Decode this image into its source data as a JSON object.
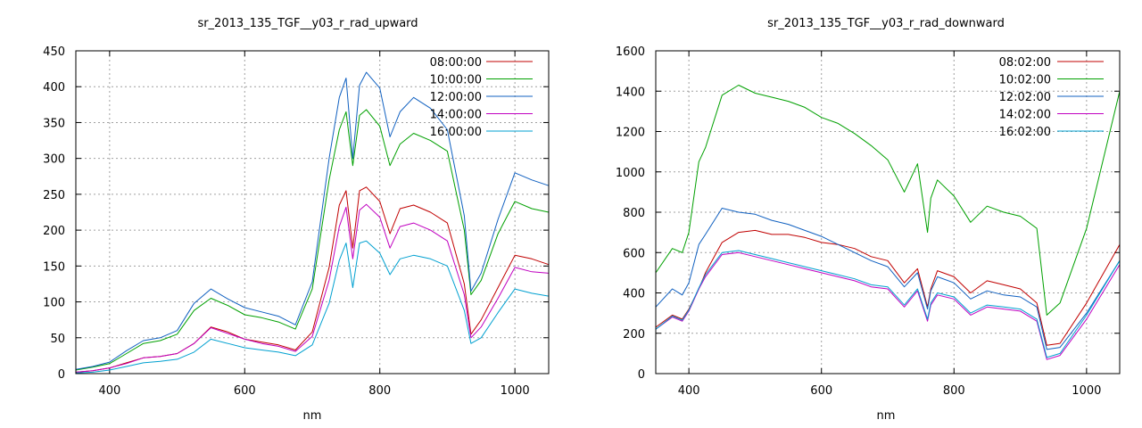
{
  "chart_data": [
    {
      "type": "line",
      "title": "sr_2013_135_TGF__y03_r_rad_upward",
      "xlabel": "nm",
      "ylabel": "",
      "xlim": [
        350,
        1050
      ],
      "ylim": [
        0,
        450
      ],
      "xticks": [
        400,
        600,
        800,
        1000
      ],
      "yticks": [
        0,
        50,
        100,
        150,
        200,
        250,
        300,
        350,
        400,
        450
      ],
      "grid": true,
      "legend_position": "top-right",
      "x": [
        350,
        375,
        400,
        425,
        450,
        475,
        500,
        525,
        550,
        575,
        600,
        625,
        650,
        675,
        700,
        725,
        740,
        750,
        760,
        770,
        780,
        800,
        815,
        830,
        850,
        875,
        900,
        925,
        935,
        950,
        975,
        1000,
        1025,
        1050
      ],
      "series": [
        {
          "name": "08:00:00",
          "color": "#c00000",
          "values": [
            2,
            4,
            8,
            15,
            22,
            24,
            28,
            42,
            65,
            58,
            48,
            44,
            40,
            33,
            58,
            148,
            235,
            255,
            175,
            255,
            260,
            240,
            195,
            230,
            235,
            225,
            210,
            125,
            55,
            75,
            120,
            165,
            160,
            152
          ]
        },
        {
          "name": "10:00:00",
          "color": "#00a000",
          "values": [
            5,
            9,
            14,
            28,
            42,
            46,
            55,
            88,
            105,
            95,
            82,
            78,
            72,
            62,
            118,
            270,
            340,
            365,
            290,
            360,
            368,
            345,
            290,
            320,
            335,
            325,
            310,
            200,
            110,
            130,
            195,
            240,
            230,
            225
          ]
        },
        {
          "name": "12:00:00",
          "color": "#1060c0",
          "values": [
            6,
            10,
            16,
            32,
            46,
            50,
            60,
            98,
            118,
            104,
            92,
            86,
            80,
            68,
            128,
            300,
            385,
            412,
            300,
            402,
            420,
            398,
            330,
            365,
            385,
            370,
            340,
            220,
            115,
            140,
            215,
            280,
            270,
            262
          ]
        },
        {
          "name": "14:00:00",
          "color": "#c000c0",
          "values": [
            2,
            4,
            8,
            14,
            22,
            24,
            28,
            42,
            64,
            56,
            48,
            42,
            38,
            31,
            52,
            130,
            205,
            232,
            160,
            228,
            236,
            218,
            175,
            205,
            210,
            200,
            185,
            110,
            50,
            65,
            105,
            148,
            142,
            140
          ]
        },
        {
          "name": "16:00:00",
          "color": "#00a0d0",
          "values": [
            1,
            2,
            5,
            10,
            15,
            17,
            20,
            30,
            48,
            42,
            36,
            33,
            30,
            25,
            40,
            98,
            158,
            182,
            120,
            182,
            185,
            168,
            138,
            160,
            165,
            160,
            150,
            88,
            42,
            50,
            85,
            118,
            112,
            108
          ]
        }
      ]
    },
    {
      "type": "line",
      "title": "sr_2013_135_TGF__y03_r_rad_downward",
      "xlabel": "nm",
      "ylabel": "",
      "xlim": [
        350,
        1050
      ],
      "ylim": [
        0,
        1600
      ],
      "xticks": [
        400,
        600,
        800,
        1000
      ],
      "yticks": [
        0,
        200,
        400,
        600,
        800,
        1000,
        1200,
        1400,
        1600
      ],
      "grid": true,
      "legend_position": "top-right",
      "x": [
        350,
        375,
        390,
        400,
        415,
        425,
        450,
        475,
        500,
        525,
        550,
        575,
        600,
        625,
        650,
        675,
        700,
        725,
        745,
        760,
        765,
        775,
        800,
        825,
        850,
        875,
        900,
        925,
        940,
        960,
        1000,
        1050
      ],
      "series": [
        {
          "name": "08:02:00",
          "color": "#c00000",
          "values": [
            230,
            290,
            270,
            320,
            420,
            500,
            650,
            700,
            710,
            690,
            690,
            675,
            650,
            640,
            620,
            580,
            560,
            450,
            520,
            330,
            420,
            510,
            480,
            400,
            460,
            440,
            420,
            350,
            140,
            150,
            350,
            640
          ]
        },
        {
          "name": "10:02:00",
          "color": "#00a000",
          "values": [
            500,
            620,
            600,
            700,
            1050,
            1120,
            1380,
            1430,
            1390,
            1370,
            1350,
            1320,
            1270,
            1240,
            1190,
            1130,
            1060,
            900,
            1040,
            700,
            870,
            960,
            880,
            750,
            830,
            800,
            780,
            720,
            290,
            350,
            720,
            1400
          ]
        },
        {
          "name": "12:02:00",
          "color": "#1060c0",
          "values": [
            330,
            420,
            390,
            450,
            640,
            690,
            820,
            800,
            790,
            760,
            740,
            710,
            680,
            640,
            600,
            560,
            530,
            430,
            500,
            320,
            410,
            480,
            450,
            370,
            410,
            390,
            380,
            330,
            120,
            130,
            300,
            560
          ]
        },
        {
          "name": "14:02:00",
          "color": "#c000c0",
          "values": [
            220,
            280,
            260,
            310,
            420,
            480,
            590,
            600,
            580,
            560,
            540,
            520,
            500,
            480,
            460,
            430,
            420,
            330,
            410,
            260,
            340,
            390,
            370,
            290,
            330,
            320,
            310,
            260,
            70,
            90,
            270,
            540
          ]
        },
        {
          "name": "16:02:00",
          "color": "#00a0d0",
          "values": [
            220,
            285,
            265,
            315,
            425,
            490,
            600,
            610,
            590,
            570,
            550,
            530,
            510,
            490,
            470,
            440,
            430,
            340,
            420,
            270,
            350,
            400,
            380,
            300,
            340,
            330,
            320,
            270,
            80,
            100,
            290,
            560
          ]
        }
      ]
    }
  ]
}
